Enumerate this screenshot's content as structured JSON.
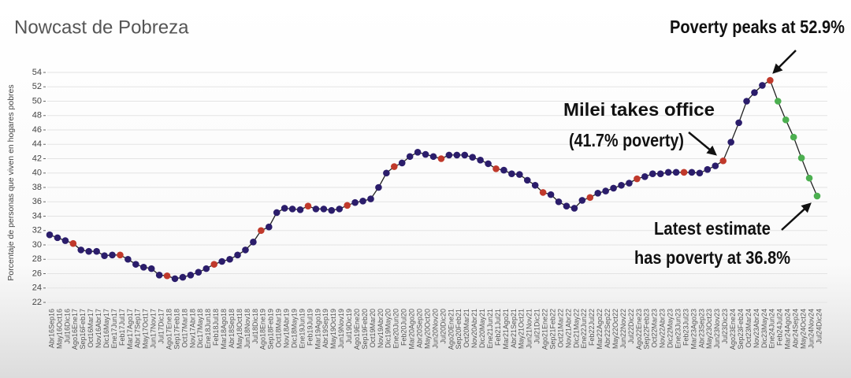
{
  "chart_data": {
    "type": "line",
    "title": "Nowcast de Pobreza",
    "ylabel": "Porcentaje de personas que viven en hogares pobres",
    "annotations": [
      "Poverty peaks at 52.9%",
      "Milei takes office",
      "(41.7% poverty)",
      "Latest estimate",
      "has poverty at 36.8%"
    ],
    "categories": [
      "Abr16Sep16",
      "May16Oct16",
      "Jul16Dic16",
      "Ago16Ene17",
      "Sep16Feb17",
      "Oct16Mar17",
      "Nov16Abr17",
      "Dic16May17",
      "Ene17Jun17",
      "Feb17Jul17",
      "Mar17Ago17",
      "Abr17Sep17",
      "May17Oct17",
      "Jun17Nov17",
      "Jul17Dic17",
      "Ago17Ene18",
      "Sep17Feb18",
      "Oct17Mar18",
      "Nov17Abr18",
      "Dic17May18",
      "Ene18Jun18",
      "Feb18Jul18",
      "Mar18Ago18",
      "Abr18Sep18",
      "May18Oct18",
      "Jun18Nov18",
      "Jul18Dic18",
      "Ago18Ene19",
      "Sep18Feb19",
      "Oct18Mar19",
      "Nov18Abr19",
      "Dic18May19",
      "Ene19Jun19",
      "Feb19Jul19",
      "Mar19Ago19",
      "Abr19Sep19",
      "May19Oct19",
      "Jun19Nov19",
      "Jul19Dic19",
      "Ago19Ene20",
      "Sep19Feb20",
      "Oct19Mar20",
      "Nov19Abr20",
      "Dic19May20",
      "Ene20Jun20",
      "Feb20Jul20",
      "Mar20Ago20",
      "Abr20Sep20",
      "May20Oct20",
      "Jun20Nov20",
      "Jul20Dic20",
      "Ago20Ene21",
      "Sep20Feb21",
      "Oct20Mar21",
      "Nov20Abr21",
      "Dic20May21",
      "Ene21Jun21",
      "Feb21Jul21",
      "Mar21Ago21",
      "Abr21Sep21",
      "May21Oct21",
      "Jun21Nov21",
      "Jul21Dic21",
      "Ago21Ene22",
      "Sep21Feb22",
      "Oct21Mar22",
      "Nov21Abr22",
      "Dic21May22",
      "Ene22Jun22",
      "Feb22Jul22",
      "Mar22Ago22",
      "Abr22Sep22",
      "May22Oct22",
      "Jun22Nov22",
      "Jul22Dic22",
      "Ago22Ene23",
      "Sep22Feb23",
      "Oct22Mar23",
      "Nov22Abr23",
      "Dic22May23",
      "Ene23Jun23",
      "Feb23Jul23",
      "Mar23Ago23",
      "Abr23Sep23",
      "May23Oct23",
      "Jun23Nov23",
      "Jul23Dic23",
      "Ago23Ene24",
      "Sep23Feb24",
      "Oct23Mar24",
      "Nov23Abr24",
      "Dic23May24",
      "Ene24Jun24",
      "Feb24Jul24",
      "Mar24Ago24",
      "Abr24Sep24",
      "May24Oct24",
      "Jun24Nov24",
      "Jul24Dic24"
    ],
    "values": [
      31.4,
      31.0,
      30.6,
      30.2,
      29.3,
      29.1,
      29.1,
      28.5,
      28.6,
      28.6,
      28.0,
      27.3,
      26.9,
      26.7,
      25.8,
      25.7,
      25.3,
      25.5,
      25.8,
      26.2,
      26.7,
      27.3,
      27.7,
      28.0,
      28.6,
      29.3,
      30.4,
      32.0,
      32.5,
      34.5,
      35.1,
      35.0,
      34.9,
      35.4,
      35.0,
      35.0,
      34.8,
      35.0,
      35.5,
      35.9,
      36.1,
      36.4,
      38.0,
      40.0,
      40.9,
      41.4,
      42.3,
      42.9,
      42.6,
      42.3,
      42.0,
      42.5,
      42.5,
      42.5,
      42.2,
      41.8,
      41.3,
      40.6,
      40.4,
      39.9,
      39.8,
      39.0,
      38.3,
      37.3,
      37.0,
      36.0,
      35.4,
      35.1,
      36.2,
      36.6,
      37.2,
      37.5,
      37.9,
      38.3,
      38.6,
      39.2,
      39.5,
      39.9,
      39.9,
      40.1,
      40.1,
      40.1,
      40.1,
      40.0,
      40.5,
      41.0,
      41.7,
      44.3,
      47.0,
      50.0,
      51.2,
      52.2,
      52.9,
      50.0,
      47.4,
      45.0,
      42.1,
      39.3,
      36.8
    ],
    "line_color": "#222222",
    "marker_colors": [
      "#2b1d6b",
      "#2b1d6b",
      "#2b1d6b",
      "#c0392b",
      "#2b1d6b",
      "#2b1d6b",
      "#2b1d6b",
      "#2b1d6b",
      "#2b1d6b",
      "#c0392b",
      "#2b1d6b",
      "#2b1d6b",
      "#2b1d6b",
      "#2b1d6b",
      "#2b1d6b",
      "#c0392b",
      "#2b1d6b",
      "#2b1d6b",
      "#2b1d6b",
      "#2b1d6b",
      "#2b1d6b",
      "#c0392b",
      "#2b1d6b",
      "#2b1d6b",
      "#2b1d6b",
      "#2b1d6b",
      "#2b1d6b",
      "#c0392b",
      "#2b1d6b",
      "#2b1d6b",
      "#2b1d6b",
      "#2b1d6b",
      "#2b1d6b",
      "#c0392b",
      "#2b1d6b",
      "#2b1d6b",
      "#2b1d6b",
      "#2b1d6b",
      "#c0392b",
      "#2b1d6b",
      "#2b1d6b",
      "#2b1d6b",
      "#2b1d6b",
      "#2b1d6b",
      "#c0392b",
      "#2b1d6b",
      "#2b1d6b",
      "#2b1d6b",
      "#2b1d6b",
      "#2b1d6b",
      "#c0392b",
      "#2b1d6b",
      "#2b1d6b",
      "#2b1d6b",
      "#2b1d6b",
      "#2b1d6b",
      "#2b1d6b",
      "#c0392b",
      "#2b1d6b",
      "#2b1d6b",
      "#2b1d6b",
      "#2b1d6b",
      "#2b1d6b",
      "#c0392b",
      "#2b1d6b",
      "#2b1d6b",
      "#2b1d6b",
      "#2b1d6b",
      "#2b1d6b",
      "#c0392b",
      "#2b1d6b",
      "#2b1d6b",
      "#2b1d6b",
      "#2b1d6b",
      "#2b1d6b",
      "#c0392b",
      "#2b1d6b",
      "#2b1d6b",
      "#2b1d6b",
      "#2b1d6b",
      "#2b1d6b",
      "#c0392b",
      "#2b1d6b",
      "#2b1d6b",
      "#2b1d6b",
      "#2b1d6b",
      "#c0392b",
      "#2b1d6b",
      "#2b1d6b",
      "#2b1d6b",
      "#2b1d6b",
      "#2b1d6b",
      "#c0392b",
      "#4caf50",
      "#4caf50",
      "#4caf50",
      "#4caf50",
      "#4caf50",
      "#4caf50"
    ],
    "ylim": [
      22,
      54
    ],
    "yticks": [
      22,
      24,
      26,
      28,
      30,
      32,
      34,
      36,
      38,
      40,
      42,
      44,
      46,
      48,
      50,
      52,
      54
    ],
    "grid": true
  }
}
